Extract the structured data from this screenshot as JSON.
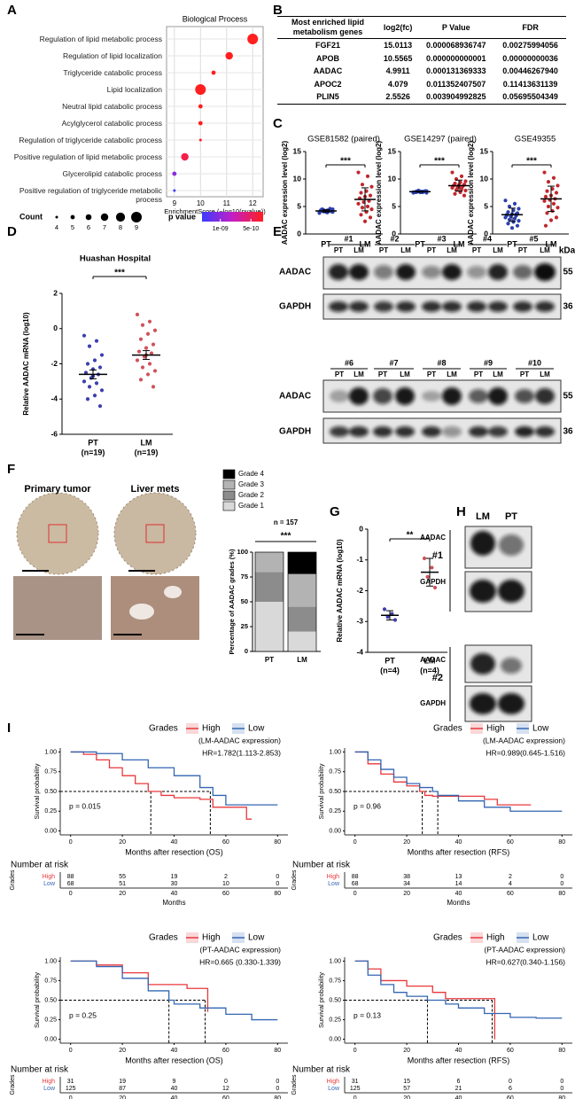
{
  "panel_labels": [
    "A",
    "B",
    "C",
    "D",
    "E",
    "F",
    "G",
    "H",
    "I"
  ],
  "table": {
    "columns": [
      "Most enriched lipid metabolism genes",
      "log2(fc)",
      "P Value",
      "FDR"
    ],
    "rows": [
      [
        "FGF21",
        "15.0113",
        "0.000068936747",
        "0.00275994056"
      ],
      [
        "APOB",
        "10.5565",
        "0.000000000001",
        "0.00000000036"
      ],
      [
        "AADAC",
        "4.9911",
        "0.000131369333",
        "0.00446267940"
      ],
      [
        "APOC2",
        "4.079",
        "0.011352407507",
        "0.11413631139"
      ],
      [
        "PLIN5",
        "2.5526",
        "0.003904992825",
        "0.05695504349"
      ]
    ]
  },
  "blots_e": {
    "top_samples": [
      "#1",
      "#2",
      "#3",
      "#4",
      "#5"
    ],
    "bottom_samples": [
      "#6",
      "#7",
      "#8",
      "#9",
      "#10"
    ],
    "lanes": [
      "PT",
      "LM"
    ],
    "proteins": [
      "AADAC",
      "GAPDH"
    ],
    "kda_title": "kDa",
    "kda": [
      "55",
      "36"
    ]
  },
  "ihc": {
    "titles": [
      "Primary tumor",
      "Liver mets"
    ]
  },
  "blots_h": {
    "lanes": [
      "LM",
      "PT"
    ],
    "proteins": [
      "AADAC",
      "GAPDH"
    ],
    "samples": [
      "#1",
      "#2"
    ]
  },
  "chart_data": [
    {
      "type": "dotplot",
      "title": "Biological Process",
      "categories": [
        "Regulation of lipid metabolic process",
        "Regulation of lipid localization",
        "Triglyceride catabolic process",
        "Lipid localization",
        "Neutral lipid catabolic process",
        "Acylglycerol catabolic process",
        "Regulation of triglyceride catabolic process",
        "Positive regulation of lipid metabolic process",
        "Glycerolipid catabolic process",
        "Positive regulation of triglyceride metabolic process"
      ],
      "x": [
        12,
        11.1,
        10.5,
        10,
        10,
        10,
        10,
        9.4,
        9,
        9
      ],
      "size": [
        9,
        7,
        5,
        9,
        5,
        5,
        4,
        7,
        5,
        4
      ],
      "colors": [
        "#ff1f1f",
        "#ff1f1f",
        "#ff1f1f",
        "#ff1f1f",
        "#ff1f1f",
        "#ff1f1f",
        "#ff1f1f",
        "#f21f4a",
        "#8a2be2",
        "#3b3bff"
      ],
      "xlabel": "EnrichmentScore (−log10(pvalue))",
      "xlim": [
        8.7,
        12.4
      ],
      "xticks": [
        9,
        10,
        11,
        12
      ],
      "size_legend": {
        "title": "Count",
        "values": [
          4,
          5,
          6,
          7,
          8,
          9
        ]
      },
      "colorbar": {
        "title": "p value",
        "lim": [
          1.3e-09,
          3e-10
        ],
        "ticks": [
          {
            "value": 1e-09,
            "label": "1e-09"
          },
          {
            "value": 5e-10,
            "label": "5e-10"
          }
        ]
      }
    },
    {
      "type": "strip",
      "title": "GSE81582 (paired)",
      "ylabel": "AADAC expression level (log2)",
      "categories": [
        "PT",
        "LM"
      ],
      "significance": "***",
      "ylim": [
        0,
        15
      ],
      "yticks": [
        0,
        5,
        10,
        15
      ],
      "groups": [
        {
          "color": "#2b3fae",
          "values": [
            4.0,
            4.3,
            4.1,
            4.5,
            3.9,
            4.2,
            4.4,
            4.0,
            4.3,
            4.6,
            4.1,
            3.8,
            4.2,
            4.4,
            4.0,
            4.3,
            4.5,
            4.1,
            4.2
          ],
          "mean": 4.2,
          "error": 0.2
        },
        {
          "color": "#c0282d",
          "values": [
            11.2,
            10.5,
            9.0,
            8.6,
            7.8,
            7.5,
            7.0,
            6.8,
            6.5,
            6.0,
            5.8,
            5.5,
            5.0,
            4.8,
            4.5,
            4.0,
            3.5,
            3.0,
            2.3
          ],
          "mean": 6.3,
          "error": 2.1
        }
      ]
    },
    {
      "type": "strip",
      "title": "GSE14297 (paired)",
      "ylabel": "AADAC expression level (log2)",
      "categories": [
        "PT",
        "LM"
      ],
      "significance": "***",
      "ylim": [
        0,
        15
      ],
      "yticks": [
        0,
        5,
        10,
        15
      ],
      "groups": [
        {
          "color": "#2b3fae",
          "values": [
            7.6,
            7.7,
            7.8,
            7.5,
            7.7,
            7.6,
            7.8,
            7.7,
            7.6,
            7.7,
            7.9,
            7.5,
            7.6,
            7.7,
            7.8,
            7.6,
            7.7,
            7.8,
            7.6
          ],
          "mean": 7.7,
          "error": 0.1
        },
        {
          "color": "#c0282d",
          "values": [
            11.2,
            10.5,
            10.0,
            9.6,
            9.4,
            9.2,
            9.0,
            8.9,
            8.8,
            8.7,
            8.5,
            8.4,
            8.2,
            8.0,
            7.9,
            7.6,
            7.3,
            7.0,
            8.6
          ],
          "mean": 8.8,
          "error": 1.0
        }
      ]
    },
    {
      "type": "strip",
      "title": "GSE49355",
      "ylabel": "AADAC expression level (log2)",
      "categories": [
        "PT",
        "LM"
      ],
      "significance": "***",
      "ylim": [
        0,
        15
      ],
      "yticks": [
        0,
        5,
        10,
        15
      ],
      "groups": [
        {
          "color": "#2b3fae",
          "values": [
            6.1,
            5.5,
            5.0,
            4.6,
            4.3,
            4.0,
            3.8,
            3.6,
            3.5,
            3.3,
            3.2,
            3.0,
            2.8,
            2.6,
            2.4,
            2.2,
            1.9,
            1.5,
            1.1,
            3.4,
            3.6
          ],
          "mean": 3.5,
          "error": 1.2
        },
        {
          "color": "#c0282d",
          "values": [
            11.2,
            10.2,
            9.5,
            8.8,
            8.2,
            7.8,
            7.5,
            7.0,
            6.8,
            6.4,
            6.2,
            6.0,
            5.5,
            5.0,
            4.8,
            4.2,
            3.8,
            3.0,
            2.5,
            1.5
          ],
          "mean": 6.4,
          "error": 2.3
        }
      ]
    },
    {
      "type": "strip",
      "title": "Huashan Hospital",
      "ylabel": "Relative AADAC mRNA (log10)",
      "categories": [
        "PT",
        "LM"
      ],
      "notes": [
        "(n=19)",
        "(n=19)"
      ],
      "significance": "***",
      "ylim": [
        -6,
        2
      ],
      "yticks": [
        -6,
        -4,
        -2,
        0,
        2
      ],
      "groups": [
        {
          "color": "#3c3fae",
          "values": [
            -0.4,
            -0.7,
            -1.0,
            -1.5,
            -1.8,
            -2.0,
            -2.2,
            -2.3,
            -2.5,
            -2.6,
            -2.8,
            -3.0,
            -3.1,
            -3.3,
            -3.5,
            -3.8,
            -4.0,
            -4.4,
            -2.7
          ],
          "mean": -2.6,
          "error": 0.25
        },
        {
          "color": "#d0525a",
          "values": [
            0.8,
            0.4,
            0.2,
            -0.1,
            -0.3,
            -0.6,
            -0.9,
            -1.1,
            -1.3,
            -1.4,
            -1.6,
            -1.8,
            -2.0,
            -2.2,
            -2.4,
            -2.6,
            -2.9,
            -3.3,
            -1.5
          ],
          "mean": -1.5,
          "error": 0.25
        }
      ]
    },
    {
      "type": "stacked_bar",
      "ylabel": "Percentage of AADAC grades (%)",
      "categories": [
        "PT",
        "LM"
      ],
      "annotation": "n = 157",
      "significance": "***",
      "ylim": [
        0,
        100
      ],
      "yticks": [
        0,
        25,
        50,
        75,
        100
      ],
      "series": [
        {
          "name": "Grade 1",
          "color": "#d9d9d9",
          "values": [
            50,
            20
          ]
        },
        {
          "name": "Grade 2",
          "color": "#8c8c8c",
          "values": [
            30,
            25
          ]
        },
        {
          "name": "Grade 3",
          "color": "#b3b3b3",
          "values": [
            20,
            33
          ]
        },
        {
          "name": "Grade 4",
          "color": "#000000",
          "values": [
            0,
            22
          ]
        }
      ]
    },
    {
      "type": "strip",
      "ylabel": "Relative AADAC mRNA (log10)",
      "categories": [
        "PT",
        "LM"
      ],
      "notes": [
        "(n=4)",
        "(n=4)"
      ],
      "significance": "**",
      "ylim": [
        -4,
        0
      ],
      "yticks": [
        -4,
        -3,
        -2,
        -1,
        0
      ],
      "groups": [
        {
          "color": "#3c3fae",
          "values": [
            -2.6,
            -2.75,
            -2.85,
            -2.95
          ],
          "mean": -2.8,
          "error": 0.15
        },
        {
          "color": "#d0525a",
          "values": [
            -0.95,
            -1.25,
            -1.55,
            -1.9
          ],
          "mean": -1.4,
          "error": 0.45
        }
      ]
    },
    {
      "type": "survival",
      "legend_title": "Grades",
      "annotation": "(LM-AADAC expression)",
      "hr": "HR=1.782(1.113-2.853)",
      "p": "p = 0.015",
      "xlabel": "Months after resection (OS)",
      "ylabel": "Survival probability",
      "xlim": [
        -4,
        84
      ],
      "xticks": [
        0,
        20,
        40,
        60,
        80
      ],
      "ylim": [
        -0.05,
        1.05
      ],
      "yticks": [
        {
          "value": 0,
          "label": "0.00"
        },
        {
          "value": 0.25,
          "label": "0.25"
        },
        {
          "value": 0.5,
          "label": "0.50"
        },
        {
          "value": 0.75,
          "label": "0.75"
        },
        {
          "value": 1,
          "label": "1.00"
        }
      ],
      "median_y": 0.5,
      "medians": [
        31,
        54
      ],
      "risk_title": "Number at risk",
      "risk_ylabel": "Grades",
      "risk_xlabel": "Months",
      "series": [
        {
          "name": "High",
          "color": "#e8383d",
          "x": [
            0,
            5,
            10,
            15,
            20,
            25,
            30,
            35,
            40,
            45,
            50,
            55,
            60,
            65,
            68,
            70
          ],
          "values": [
            1,
            0.97,
            0.9,
            0.8,
            0.7,
            0.6,
            0.5,
            0.45,
            0.42,
            0.42,
            0.4,
            0.3,
            0.3,
            0.3,
            0.15,
            0.15
          ],
          "risk": [
            88,
            55,
            19,
            2,
            0
          ]
        },
        {
          "name": "Low",
          "color": "#3366b3",
          "x": [
            0,
            10,
            20,
            30,
            40,
            50,
            55,
            60,
            70,
            80
          ],
          "values": [
            1,
            0.98,
            0.9,
            0.8,
            0.7,
            0.55,
            0.45,
            0.33,
            0.33,
            0.33
          ],
          "risk": [
            68,
            51,
            30,
            10,
            0
          ]
        }
      ]
    },
    {
      "type": "survival",
      "legend_title": "Grades",
      "annotation": "(LM-AADAC expression)",
      "hr": "HR=0.989(0.645-1.516)",
      "p": "p = 0.96",
      "xlabel": "Months after resection (RFS)",
      "ylabel": "Survival probability",
      "xlim": [
        -4,
        84
      ],
      "xticks": [
        0,
        20,
        40,
        60,
        80
      ],
      "ylim": [
        -0.05,
        1.05
      ],
      "yticks": [
        {
          "value": 0,
          "label": "0.00"
        },
        {
          "value": 0.25,
          "label": "0.25"
        },
        {
          "value": 0.5,
          "label": "0.50"
        },
        {
          "value": 0.75,
          "label": "0.75"
        },
        {
          "value": 1,
          "label": "1.00"
        }
      ],
      "median_y": 0.5,
      "medians": [
        26,
        32
      ],
      "risk_title": "Number at risk",
      "risk_ylabel": "Grades",
      "risk_xlabel": "Months",
      "series": [
        {
          "name": "High",
          "color": "#e8383d",
          "x": [
            0,
            5,
            10,
            15,
            20,
            25,
            27,
            30,
            40,
            50,
            55,
            68
          ],
          "values": [
            1,
            0.85,
            0.72,
            0.62,
            0.57,
            0.5,
            0.45,
            0.44,
            0.44,
            0.4,
            0.33,
            0.33
          ],
          "risk": [
            88,
            38,
            13,
            2,
            0
          ]
        },
        {
          "name": "Low",
          "color": "#3366b3",
          "x": [
            0,
            5,
            10,
            15,
            20,
            25,
            30,
            32,
            40,
            50,
            60,
            70,
            80
          ],
          "values": [
            1,
            0.9,
            0.78,
            0.68,
            0.6,
            0.55,
            0.5,
            0.45,
            0.38,
            0.3,
            0.25,
            0.25,
            0.25
          ],
          "risk": [
            68,
            34,
            14,
            4,
            0
          ]
        }
      ]
    },
    {
      "type": "survival",
      "legend_title": "Grades",
      "annotation": "(PT-AADAC expression)",
      "hr": "HR=0.665\n(0.330-1.339)",
      "p": "p = 0.25",
      "xlabel": "Months after resection (OS)",
      "ylabel": "Survival probability",
      "xlim": [
        -4,
        84
      ],
      "xticks": [
        0,
        20,
        40,
        60,
        80
      ],
      "ylim": [
        -0.05,
        1.05
      ],
      "yticks": [
        {
          "value": 0,
          "label": "0.00"
        },
        {
          "value": 0.25,
          "label": "0.25"
        },
        {
          "value": 0.5,
          "label": "0.50"
        },
        {
          "value": 0.75,
          "label": "0.75"
        },
        {
          "value": 1,
          "label": "1.00"
        }
      ],
      "median_y": 0.5,
      "medians": [
        38,
        52
      ],
      "risk_title": "Number at risk",
      "risk_ylabel": "Grades",
      "series": [
        {
          "name": "High",
          "color": "#e8383d",
          "x": [
            0,
            10,
            20,
            30,
            38,
            45,
            52,
            53
          ],
          "values": [
            1,
            0.95,
            0.85,
            0.7,
            0.7,
            0.65,
            0.65,
            0.35
          ],
          "risk": [
            31,
            19,
            9,
            0,
            0
          ]
        },
        {
          "name": "Low",
          "color": "#3366b3",
          "x": [
            0,
            10,
            20,
            30,
            38,
            40,
            50,
            60,
            70,
            80
          ],
          "values": [
            1,
            0.93,
            0.78,
            0.62,
            0.5,
            0.45,
            0.4,
            0.32,
            0.25,
            0.25
          ],
          "risk": [
            125,
            87,
            40,
            12,
            0
          ]
        }
      ]
    },
    {
      "type": "survival",
      "legend_title": "Grades",
      "annotation": "(PT-AADAC expression)",
      "hr": "HR=0.627(0.340-1.156)",
      "p": "p = 0.13",
      "xlabel": "Months after resection (RFS)",
      "ylabel": "Survival probability",
      "xlim": [
        -4,
        84
      ],
      "xticks": [
        0,
        20,
        40,
        60,
        80
      ],
      "ylim": [
        -0.05,
        1.05
      ],
      "yticks": [
        {
          "value": 0,
          "label": "0.00"
        },
        {
          "value": 0.25,
          "label": "0.25"
        },
        {
          "value": 0.5,
          "label": "0.50"
        },
        {
          "value": 0.75,
          "label": "0.75"
        },
        {
          "value": 1,
          "label": "1.00"
        }
      ],
      "median_y": 0.5,
      "medians": [
        28,
        53
      ],
      "risk_title": "Number at risk",
      "risk_ylabel": "Grades",
      "series": [
        {
          "name": "High",
          "color": "#e8383d",
          "x": [
            0,
            5,
            10,
            20,
            30,
            35,
            45,
            53,
            54
          ],
          "values": [
            1,
            0.9,
            0.75,
            0.68,
            0.6,
            0.52,
            0.52,
            0.52,
            0
          ],
          "risk": [
            31,
            15,
            6,
            0,
            0
          ]
        },
        {
          "name": "Low",
          "color": "#3366b3",
          "x": [
            0,
            5,
            10,
            15,
            20,
            28,
            35,
            40,
            50,
            60,
            70,
            80
          ],
          "values": [
            1,
            0.82,
            0.7,
            0.6,
            0.55,
            0.5,
            0.45,
            0.4,
            0.33,
            0.28,
            0.27,
            0.27
          ],
          "risk": [
            125,
            57,
            21,
            6,
            0
          ]
        }
      ]
    }
  ]
}
